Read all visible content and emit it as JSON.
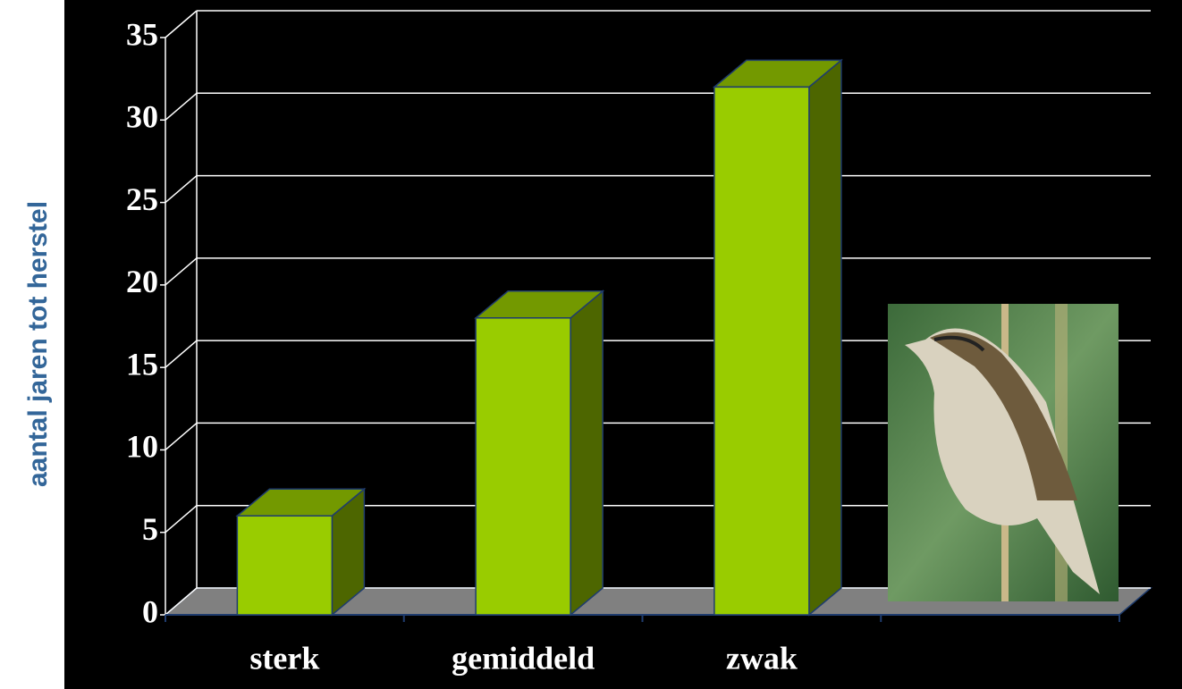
{
  "chart_data": {
    "type": "bar",
    "y_label": "aantal jaren tot herstel",
    "categories": [
      "sterk",
      "gemiddeld",
      "zwak",
      null
    ],
    "values": [
      6,
      18,
      32,
      null
    ],
    "color": "#99cc00",
    "ylim": [
      0,
      35
    ],
    "yticks": [
      0,
      5,
      10,
      15,
      20,
      25,
      30,
      35
    ],
    "grid": true
  }
}
